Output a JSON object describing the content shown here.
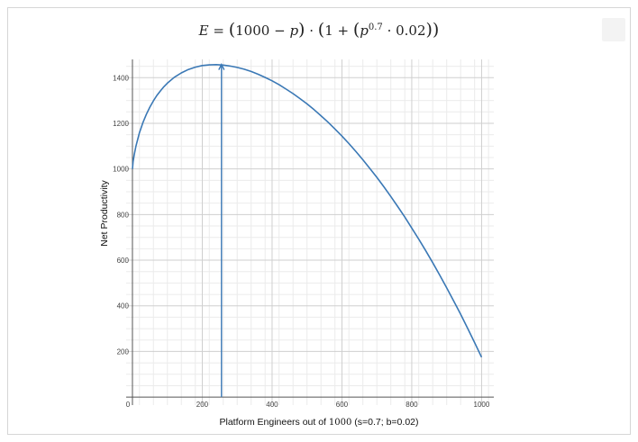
{
  "equation": {
    "lhs": "E",
    "rhs_a": "1000",
    "var_p": "p",
    "exponent": "0.7",
    "coef": "0.02",
    "one": "1"
  },
  "chart_data": {
    "type": "line",
    "title": "",
    "xlabel_prefix": "Platform Engineers out of ",
    "xlabel_num": "1000",
    "xlabel_suffix": " (s=0.7; b=0.02)",
    "ylabel": "Net Productivity",
    "xlim": [
      -18,
      1035
    ],
    "ylim": [
      -35,
      1480
    ],
    "xticks": [
      0,
      200,
      400,
      600,
      800,
      1000
    ],
    "xtick_labels": [
      "0",
      "200",
      "400",
      "600",
      "800",
      "1000"
    ],
    "yticks": [
      200,
      400,
      600,
      800,
      1000,
      1200,
      1400
    ],
    "ytick_labels": [
      "200",
      "400",
      "600",
      "800",
      "1000",
      "1200",
      "1400"
    ],
    "grid": true,
    "series": [
      {
        "color": "#3a78b5",
        "x": [
          0,
          2,
          5,
          10,
          20,
          30,
          40,
          50,
          60,
          70,
          80,
          90,
          100,
          120,
          140,
          160,
          180,
          200,
          220,
          240,
          260,
          280,
          300,
          320,
          340,
          360,
          380,
          400,
          420,
          440,
          460,
          480,
          500,
          520,
          540,
          560,
          580,
          600,
          620,
          640,
          660,
          680,
          700,
          720,
          740,
          760,
          780,
          800,
          820,
          840,
          860,
          880,
          900,
          920,
          940,
          960,
          980,
          1000
        ],
        "y": [
          1000,
          1032,
          1061,
          1099,
          1158,
          1203,
          1240,
          1271,
          1298,
          1322,
          1342,
          1360,
          1376,
          1402,
          1421,
          1436,
          1446,
          1453,
          1456,
          1457,
          1455,
          1451,
          1445,
          1437,
          1427,
          1415,
          1401,
          1386,
          1369,
          1350,
          1330,
          1308,
          1285,
          1260,
          1233,
          1205,
          1175,
          1144,
          1111,
          1076,
          1040,
          1002,
          963,
          922,
          879,
          835,
          789,
          741,
          692,
          642,
          589,
          535,
          479,
          422,
          363,
          302,
          239,
          175
        ]
      }
    ],
    "annotation": {
      "type": "vertical-arrow",
      "x": 255,
      "y_from": 0,
      "y_to": 1458,
      "color": "#3a78b5"
    }
  }
}
